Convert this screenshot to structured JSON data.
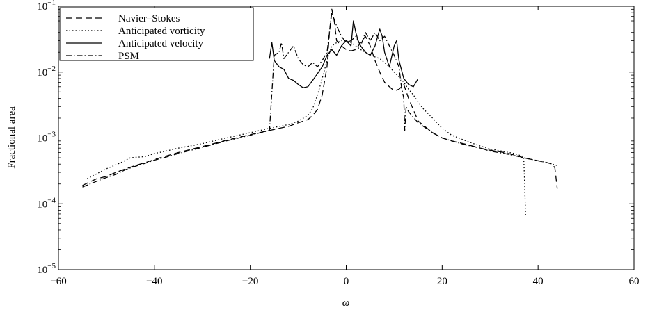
{
  "chart_data": {
    "type": "line",
    "xlabel": "ω",
    "ylabel": "Fractional area",
    "xlim": [
      -60,
      60
    ],
    "ylim_log10": [
      -5,
      -1
    ],
    "y_scale": "log",
    "x_ticks": [
      "−60",
      "−40",
      "−20",
      "0",
      "20",
      "40",
      "60"
    ],
    "y_ticks": [
      {
        "base": "10",
        "exp": "−5"
      },
      {
        "base": "10",
        "exp": "−4"
      },
      {
        "base": "10",
        "exp": "−3"
      },
      {
        "base": "10",
        "exp": "−2"
      },
      {
        "base": "10",
        "exp": "−1"
      }
    ],
    "grid": false,
    "legend_position": "top-left",
    "series": [
      {
        "name": "Navier–Stokes",
        "style": "dashed",
        "color": "#000000",
        "x": [
          -55,
          -52,
          -50,
          -48,
          -46,
          -44,
          -42,
          -40,
          -38,
          -35,
          -30,
          -25,
          -20,
          -16,
          -12,
          -10,
          -8,
          -7,
          -6,
          -5,
          -4,
          -3.5,
          -3,
          -2.5,
          -2,
          -1,
          0,
          1,
          2,
          3,
          4,
          5,
          6,
          7,
          8,
          9,
          10,
          11,
          12,
          13,
          15,
          18,
          20,
          22,
          25,
          28,
          30,
          33,
          35,
          37,
          40,
          42,
          43,
          43.5,
          44
        ],
        "y": [
          0.00019,
          0.00024,
          0.00026,
          0.0003,
          0.00034,
          0.00038,
          0.00042,
          0.00047,
          0.00052,
          0.0006,
          0.00074,
          0.00092,
          0.00112,
          0.0013,
          0.0015,
          0.0017,
          0.0019,
          0.0022,
          0.0027,
          0.0045,
          0.012,
          0.04,
          0.09,
          0.06,
          0.03,
          0.025,
          0.022,
          0.021,
          0.022,
          0.028,
          0.035,
          0.025,
          0.015,
          0.01,
          0.007,
          0.006,
          0.0052,
          0.0055,
          0.0065,
          0.004,
          0.0018,
          0.0012,
          0.001,
          0.0009,
          0.0008,
          0.0007,
          0.00065,
          0.0006,
          0.00055,
          0.0005,
          0.00045,
          0.00042,
          0.0004,
          0.00035,
          0.00017
        ]
      },
      {
        "name": "Anticipated vorticity",
        "style": "dotted",
        "color": "#000000",
        "x": [
          -54,
          -50,
          -47,
          -45,
          -42,
          -40,
          -38,
          -35,
          -30,
          -25,
          -20,
          -16,
          -12,
          -10,
          -8,
          -7,
          -6,
          -5,
          -4,
          -3,
          -2,
          -1,
          0,
          1,
          2,
          3,
          4,
          5,
          6,
          7,
          8,
          9,
          10,
          11,
          12,
          13,
          14,
          15,
          16,
          18,
          20,
          22,
          25,
          28,
          30,
          33,
          35,
          36,
          37,
          37.2,
          37.4
        ],
        "y": [
          0.00024,
          0.00034,
          0.00042,
          0.0005,
          0.00052,
          0.00058,
          0.00062,
          0.0007,
          0.00082,
          0.001,
          0.0012,
          0.0014,
          0.0016,
          0.0018,
          0.0022,
          0.0028,
          0.0045,
          0.008,
          0.015,
          0.025,
          0.028,
          0.03,
          0.03,
          0.028,
          0.025,
          0.022,
          0.02,
          0.018,
          0.017,
          0.016,
          0.014,
          0.012,
          0.01,
          0.0085,
          0.007,
          0.0055,
          0.0045,
          0.0035,
          0.0028,
          0.002,
          0.0014,
          0.0011,
          0.0009,
          0.00075,
          0.00068,
          0.00062,
          0.00058,
          0.00055,
          0.00052,
          0.0002,
          6.5e-05
        ]
      },
      {
        "name": "Anticipated velocity",
        "style": "solid",
        "color": "#000000",
        "x": [
          -16,
          -15.5,
          -15,
          -14,
          -13,
          -12,
          -11,
          -10,
          -9,
          -8,
          -7,
          -6,
          -5,
          -4,
          -3,
          -2,
          -1,
          0,
          1,
          1.5,
          2,
          2.5,
          3,
          4,
          5,
          6,
          7,
          7.5,
          8,
          9,
          10,
          10.5,
          11,
          12,
          13,
          14,
          15
        ],
        "y": [
          0.016,
          0.028,
          0.015,
          0.012,
          0.011,
          0.008,
          0.0075,
          0.0065,
          0.0058,
          0.006,
          0.0075,
          0.0095,
          0.012,
          0.018,
          0.022,
          0.018,
          0.025,
          0.03,
          0.025,
          0.06,
          0.04,
          0.03,
          0.025,
          0.02,
          0.018,
          0.025,
          0.045,
          0.035,
          0.02,
          0.012,
          0.025,
          0.03,
          0.015,
          0.008,
          0.0065,
          0.006,
          0.008
        ]
      },
      {
        "name": "PSM",
        "style": "dashdot",
        "color": "#000000",
        "x": [
          -55,
          -52,
          -50,
          -48,
          -46,
          -44,
          -42,
          -40,
          -38,
          -35,
          -30,
          -25,
          -20,
          -16,
          -15,
          -14,
          -13.5,
          -13,
          -12,
          -11,
          -10,
          -9,
          -8,
          -7,
          -6,
          -5,
          -4,
          -3,
          -2,
          -1,
          0,
          1,
          2,
          3,
          4,
          5,
          6,
          7,
          8,
          9,
          10,
          11,
          11.5,
          12,
          12.2,
          12.5,
          13,
          15,
          18,
          20,
          22,
          25,
          28,
          30,
          33,
          35,
          37,
          40,
          42,
          43,
          44
        ],
        "y": [
          0.00018,
          0.00022,
          0.00025,
          0.00028,
          0.00033,
          0.00037,
          0.00041,
          0.00046,
          0.0005,
          0.00058,
          0.00072,
          0.0009,
          0.0011,
          0.0013,
          0.018,
          0.02,
          0.028,
          0.016,
          0.02,
          0.025,
          0.016,
          0.013,
          0.012,
          0.014,
          0.012,
          0.015,
          0.02,
          0.08,
          0.05,
          0.035,
          0.028,
          0.03,
          0.035,
          0.025,
          0.04,
          0.03,
          0.04,
          0.03,
          0.035,
          0.025,
          0.018,
          0.012,
          0.006,
          0.004,
          0.0013,
          0.003,
          0.0025,
          0.0017,
          0.0012,
          0.001,
          0.0009,
          0.00078,
          0.0007,
          0.00063,
          0.00058,
          0.00054,
          0.0005,
          0.00045,
          0.00042,
          0.0004,
          0.00038
        ]
      }
    ]
  }
}
